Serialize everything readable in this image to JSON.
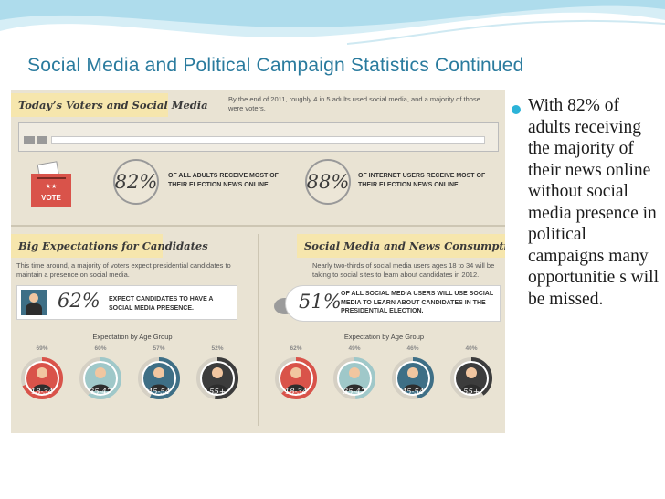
{
  "slide": {
    "title": "Social Media and Political Campaign Statistics Continued",
    "bullet": "With 82% of adults receiving the majority of their news online without social media presence in political campaigns many opportunitie s will be missed."
  },
  "infographic": {
    "header": "Today’s Voters and Social Media",
    "intro": "By the end of 2011, roughly 4 in 5 adults used social media, and a majority of those were voters.",
    "vote_label": "VOTE",
    "stat1": {
      "value": "82%",
      "text": "OF ALL ADULTS RECEIVE MOST OF THEIR ELECTION NEWS ONLINE."
    },
    "stat2": {
      "value": "88%",
      "text": "OF INTERNET USERS RECEIVE MOST OF THEIR ELECTION NEWS ONLINE."
    },
    "left": {
      "header": "Big Expectations for Candidates",
      "intro": "This time around, a majority of voters expect presidential candidates to maintain a presence on social media.",
      "stat": {
        "value": "62%",
        "text": "EXPECT CANDIDATES TO HAVE A SOCIAL MEDIA PRESENCE."
      },
      "age_title": "Expectation by Age Group",
      "groups": [
        {
          "pct": "69%",
          "label": "18-34",
          "value": 0.69,
          "color": "#d9534a"
        },
        {
          "pct": "60%",
          "label": "35-47",
          "value": 0.6,
          "color": "#9fc8c9"
        },
        {
          "pct": "57%",
          "label": "45-54",
          "value": 0.57,
          "color": "#3e6f86"
        },
        {
          "pct": "52%",
          "label": "55+",
          "value": 0.52,
          "color": "#3c3c3c"
        }
      ]
    },
    "right": {
      "header": "Social Media and News Consumption",
      "intro": "Nearly two-thirds of social media users ages 18 to 34 will be taking to social sites to learn about candidates in 2012.",
      "stat": {
        "value": "51%",
        "text": "OF ALL SOCIAL MEDIA USERS WILL USE SOCIAL MEDIA TO LEARN ABOUT CANDIDATES IN THE PRESIDENTIAL ELECTION."
      },
      "age_title": "Expectation by Age Group",
      "groups": [
        {
          "pct": "62%",
          "label": "18-34",
          "value": 0.62,
          "color": "#d9534a"
        },
        {
          "pct": "49%",
          "label": "35-47",
          "value": 0.49,
          "color": "#9fc8c9"
        },
        {
          "pct": "46%",
          "label": "45-54",
          "value": 0.46,
          "color": "#3e6f86"
        },
        {
          "pct": "40%",
          "label": "55+",
          "value": 0.4,
          "color": "#3c3c3c"
        }
      ]
    }
  }
}
